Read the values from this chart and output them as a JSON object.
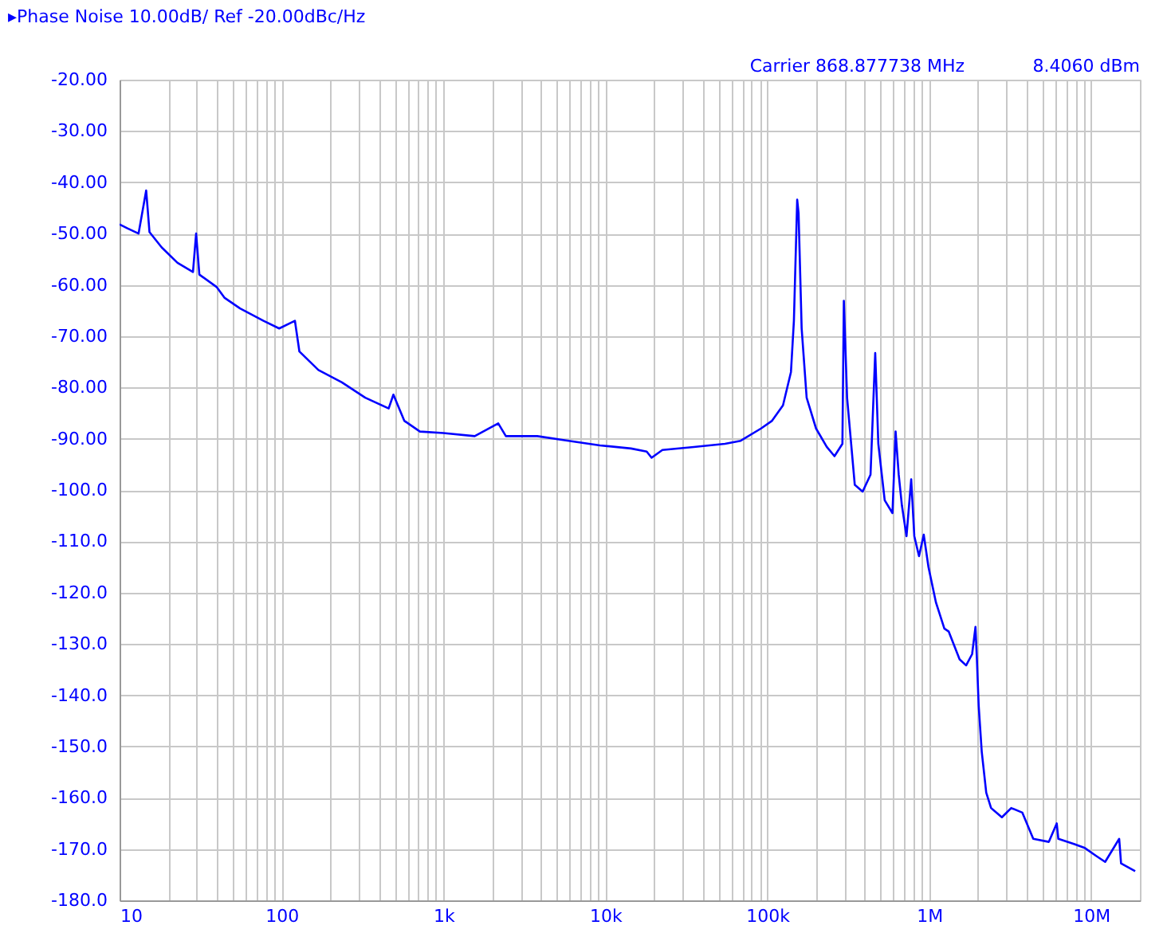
{
  "chart_data": {
    "type": "line",
    "title": "▸Phase Noise 10.00dB/ Ref -20.00dBc/Hz",
    "annotations": [
      "Carrier 868.877738 MHz",
      "8.4060 dBm"
    ],
    "log": "x",
    "grid": true,
    "marker": "none",
    "line_style": "solid",
    "xlim": [
      10,
      20000000
    ],
    "xticks": [
      {
        "value": 10,
        "label": "10"
      },
      {
        "value": 20,
        "label": null
      },
      {
        "value": 30,
        "label": null
      },
      {
        "value": 40,
        "label": null
      },
      {
        "value": 50,
        "label": null
      },
      {
        "value": 60,
        "label": null
      },
      {
        "value": 70,
        "label": null
      },
      {
        "value": 80,
        "label": null
      },
      {
        "value": 90,
        "label": null
      },
      {
        "value": 100,
        "label": "100"
      },
      {
        "value": 200,
        "label": null
      },
      {
        "value": 300,
        "label": null
      },
      {
        "value": 400,
        "label": null
      },
      {
        "value": 500,
        "label": null
      },
      {
        "value": 600,
        "label": null
      },
      {
        "value": 700,
        "label": null
      },
      {
        "value": 800,
        "label": null
      },
      {
        "value": 900,
        "label": null
      },
      {
        "value": 1000,
        "label": "1k"
      },
      {
        "value": 2000,
        "label": null
      },
      {
        "value": 3000,
        "label": null
      },
      {
        "value": 4000,
        "label": null
      },
      {
        "value": 5000,
        "label": null
      },
      {
        "value": 6000,
        "label": null
      },
      {
        "value": 7000,
        "label": null
      },
      {
        "value": 8000,
        "label": null
      },
      {
        "value": 9000,
        "label": null
      },
      {
        "value": 10000,
        "label": "10k"
      },
      {
        "value": 20000,
        "label": null
      },
      {
        "value": 30000,
        "label": null
      },
      {
        "value": 40000,
        "label": null
      },
      {
        "value": 50000,
        "label": null
      },
      {
        "value": 60000,
        "label": null
      },
      {
        "value": 70000,
        "label": null
      },
      {
        "value": 80000,
        "label": null
      },
      {
        "value": 90000,
        "label": null
      },
      {
        "value": 100000,
        "label": "100k"
      },
      {
        "value": 200000,
        "label": null
      },
      {
        "value": 300000,
        "label": null
      },
      {
        "value": 400000,
        "label": null
      },
      {
        "value": 500000,
        "label": null
      },
      {
        "value": 600000,
        "label": null
      },
      {
        "value": 700000,
        "label": null
      },
      {
        "value": 800000,
        "label": null
      },
      {
        "value": 900000,
        "label": null
      },
      {
        "value": 1000000,
        "label": "1M"
      },
      {
        "value": 2000000,
        "label": null
      },
      {
        "value": 3000000,
        "label": null
      },
      {
        "value": 4000000,
        "label": null
      },
      {
        "value": 5000000,
        "label": null
      },
      {
        "value": 6000000,
        "label": null
      },
      {
        "value": 7000000,
        "label": null
      },
      {
        "value": 8000000,
        "label": null
      },
      {
        "value": 9000000,
        "label": null
      },
      {
        "value": 10000000,
        "label": "10M"
      },
      {
        "value": 20000000,
        "label": null
      }
    ],
    "ylim": [
      -180,
      -20
    ],
    "yticks": [
      {
        "value": -20,
        "label": "-20.00"
      },
      {
        "value": -30,
        "label": "-30.00"
      },
      {
        "value": -40,
        "label": "-40.00"
      },
      {
        "value": -50,
        "label": "-50.00"
      },
      {
        "value": -60,
        "label": "-60.00"
      },
      {
        "value": -70,
        "label": "-70.00"
      },
      {
        "value": -80,
        "label": "-80.00"
      },
      {
        "value": -90,
        "label": "-90.00"
      },
      {
        "value": -100,
        "label": "-100.0"
      },
      {
        "value": -110,
        "label": "-110.0"
      },
      {
        "value": -120,
        "label": "-120.0"
      },
      {
        "value": -130,
        "label": "-130.0"
      },
      {
        "value": -140,
        "label": "-140.0"
      },
      {
        "value": -150,
        "label": "-150.0"
      },
      {
        "value": -160,
        "label": "-160.0"
      },
      {
        "value": -170,
        "label": "-170.0"
      },
      {
        "value": -180,
        "label": "-180.0"
      }
    ],
    "series": [
      {
        "color": "#0000ff",
        "x": [
          10,
          11.2,
          13.1,
          14.6,
          15.3,
          18.2,
          22.8,
          28.4,
          29.7,
          31.1,
          39.7,
          44.4,
          55.5,
          77.4,
          96.8,
          121,
          129,
          169,
          236,
          329,
          459,
          491,
          573,
          716,
          1000,
          1560,
          2180,
          2430,
          3800,
          5930,
          9250,
          14400,
          18000,
          19300,
          22500,
          35200,
          54800,
          68500,
          91500,
          107000,
          125000,
          140000,
          146000,
          153000,
          156000,
          163000,
          175000,
          200000,
          233000,
          260000,
          291000,
          297000,
          311000,
          347000,
          388000,
          434000,
          464000,
          485000,
          531000,
          593000,
          620000,
          648000,
          678000,
          724000,
          774000,
          809000,
          865000,
          925000,
          989000,
          1100000,
          1240000,
          1320000,
          1540000,
          1690000,
          1840000,
          1930000,
          1970000,
          2020000,
          2110000,
          2250000,
          2410000,
          2810000,
          3210000,
          3760000,
          4390000,
          5480000,
          6130000,
          6270000,
          7830000,
          9150000,
          10700000,
          12200000,
          14900000,
          15300000,
          18700000
        ],
        "values": [
          -48.2,
          -49,
          -50,
          -41.6,
          -49.7,
          -52.7,
          -55.7,
          -57.5,
          -50,
          -58,
          -60.4,
          -62.5,
          -64.6,
          -67,
          -68.5,
          -67,
          -73,
          -76.6,
          -79,
          -82,
          -84.1,
          -81.4,
          -86.5,
          -88.6,
          -88.9,
          -89.5,
          -87,
          -89.5,
          -89.5,
          -90.4,
          -91.3,
          -91.9,
          -92.5,
          -93.7,
          -92.2,
          -91.6,
          -91,
          -90.4,
          -88,
          -86.5,
          -83.5,
          -77,
          -67,
          -43.4,
          -46,
          -68.5,
          -82,
          -88,
          -91.6,
          -93.4,
          -91,
          -63.1,
          -82,
          -99,
          -100.3,
          -97,
          -73.3,
          -91,
          -102,
          -104.5,
          -88.6,
          -97,
          -103,
          -109,
          -97.9,
          -109,
          -112.9,
          -108.7,
          -115,
          -121.9,
          -127,
          -127.6,
          -133,
          -134.2,
          -132,
          -126.7,
          -133,
          -142,
          -151,
          -159,
          -162,
          -163.8,
          -162,
          -162.9,
          -168,
          -168.6,
          -165,
          -168,
          -169,
          -169.8,
          -171.3,
          -172.5,
          -168,
          -172.8,
          -174.3
        ]
      }
    ]
  }
}
